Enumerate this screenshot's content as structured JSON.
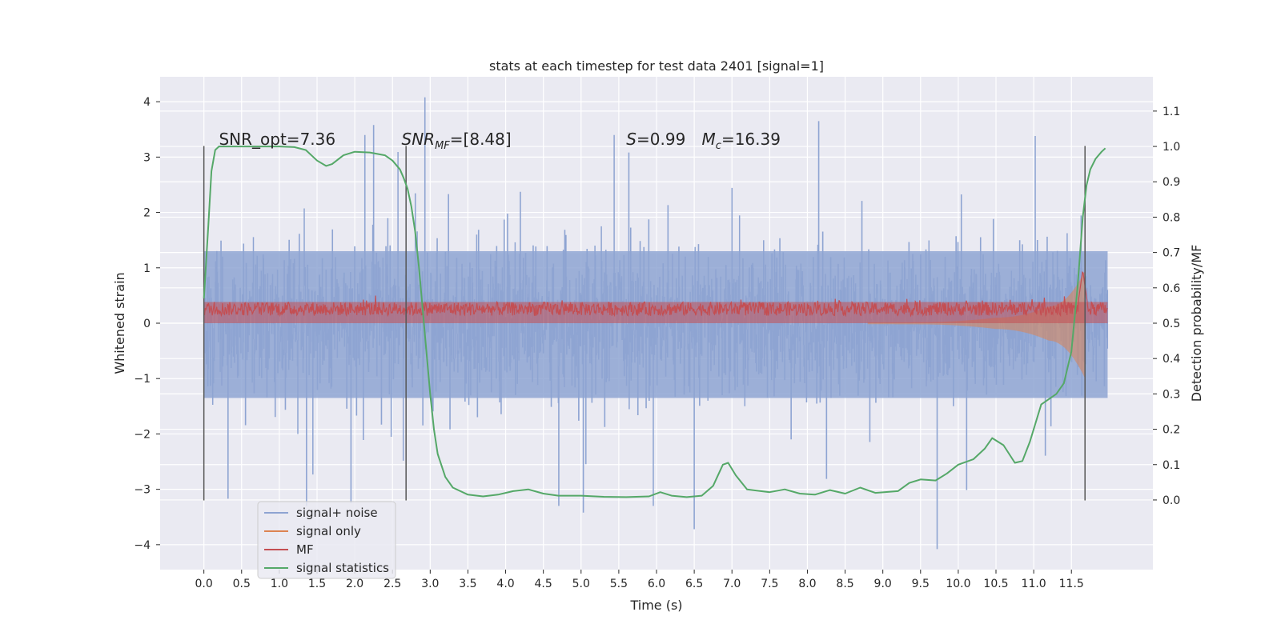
{
  "chart_data": {
    "type": "line",
    "title": "stats at each timestep for test data 2401 [signal=1]",
    "xlabel": "Time (s)",
    "ylabel_left": "Whitened strain",
    "ylabel_right": "Detection probability/MF",
    "xlim": [
      -0.58,
      12.58
    ],
    "ylim_left": [
      -4.45,
      4.45
    ],
    "ylim_right": [
      -0.197,
      1.197
    ],
    "grid": true,
    "legend_position": "lower-left",
    "x_ticks": [
      0.0,
      0.5,
      1.0,
      1.5,
      2.0,
      2.5,
      3.0,
      3.5,
      4.0,
      4.5,
      5.0,
      5.5,
      6.0,
      6.5,
      7.0,
      7.5,
      8.0,
      8.5,
      9.0,
      9.5,
      10.0,
      10.5,
      11.0,
      11.5
    ],
    "x_tick_labels": [
      "0.0",
      "0.5",
      "1.0",
      "1.5",
      "2.0",
      "2.5",
      "3.0",
      "3.5",
      "4.0",
      "4.5",
      "5.0",
      "5.5",
      "6.0",
      "6.5",
      "7.0",
      "7.5",
      "8.0",
      "8.5",
      "9.0",
      "9.5",
      "10.0",
      "10.5",
      "11.0",
      "11.5"
    ],
    "y_left_ticks": [
      -4,
      -3,
      -2,
      -1,
      0,
      1,
      2,
      3,
      4
    ],
    "y_left_tick_labels": [
      "−4",
      "−3",
      "−2",
      "−1",
      "0",
      "1",
      "2",
      "3",
      "4"
    ],
    "y_right_ticks": [
      0.0,
      0.1,
      0.2,
      0.3,
      0.4,
      0.5,
      0.6,
      0.7,
      0.8,
      0.9,
      1.0,
      1.1
    ],
    "y_right_tick_labels": [
      "0.0",
      "0.1",
      "0.2",
      "0.3",
      "0.4",
      "0.5",
      "0.6",
      "0.7",
      "0.8",
      "0.9",
      "1.0",
      "1.1"
    ],
    "series": [
      {
        "name": "signal+ noise",
        "color": "#8ea4d2",
        "axis": "left",
        "x_range": [
          0.0,
          11.98
        ],
        "envelope_typical": [
          -1.9,
          2.0
        ],
        "peaks": [
          {
            "x": 2.93,
            "y": 4.08
          },
          {
            "x": 2.25,
            "y": 3.58
          },
          {
            "x": 8.15,
            "y": 3.65
          },
          {
            "x": 9.72,
            "y": -4.08
          },
          {
            "x": 6.5,
            "y": -3.72
          },
          {
            "x": 5.03,
            "y": -3.42
          },
          {
            "x": 11.02,
            "y": 3.38
          },
          {
            "x": 0.32,
            "y": -3.17
          },
          {
            "x": 1.95,
            "y": -3.25
          }
        ]
      },
      {
        "name": "signal only",
        "color": "#dd8452",
        "axis": "left",
        "x_range": [
          0.0,
          11.68
        ],
        "description_points": [
          {
            "x": 0.0,
            "amp": 0.0
          },
          {
            "x": 9.5,
            "amp": 0.02
          },
          {
            "x": 10.5,
            "amp": 0.1
          },
          {
            "x": 11.2,
            "amp": 0.3
          },
          {
            "x": 11.68,
            "amp": 0.95
          }
        ]
      },
      {
        "name": "MF",
        "color": "#c44e52",
        "axis": "right",
        "x_range": [
          0.0,
          11.98
        ],
        "typical_range": [
          0.5,
          0.56
        ],
        "peak": {
          "x": 11.65,
          "y": 0.65
        }
      },
      {
        "name": "signal statistics",
        "color": "#55a868",
        "axis": "right",
        "x": [
          0.0,
          0.06,
          0.1,
          0.15,
          0.2,
          0.3,
          0.5,
          0.8,
          1.0,
          1.2,
          1.35,
          1.5,
          1.62,
          1.7,
          1.85,
          2.0,
          2.2,
          2.4,
          2.5,
          2.6,
          2.65,
          2.7,
          2.75,
          2.8,
          2.85,
          2.9,
          2.95,
          3.0,
          3.05,
          3.1,
          3.2,
          3.3,
          3.5,
          3.7,
          3.9,
          4.1,
          4.3,
          4.5,
          4.7,
          5.0,
          5.3,
          5.6,
          5.9,
          6.05,
          6.2,
          6.4,
          6.6,
          6.75,
          6.88,
          6.95,
          7.05,
          7.2,
          7.5,
          7.7,
          7.9,
          8.1,
          8.3,
          8.5,
          8.7,
          8.9,
          9.2,
          9.35,
          9.5,
          9.7,
          9.85,
          10.0,
          10.2,
          10.35,
          10.45,
          10.6,
          10.75,
          10.85,
          10.95,
          11.1,
          11.3,
          11.4,
          11.5,
          11.58,
          11.65,
          11.7,
          11.75,
          11.82,
          11.9,
          11.95
        ],
        "y": [
          0.57,
          0.78,
          0.93,
          0.99,
          1.0,
          1.0,
          1.0,
          1.0,
          1.0,
          0.998,
          0.99,
          0.96,
          0.945,
          0.95,
          0.975,
          0.985,
          0.983,
          0.975,
          0.96,
          0.935,
          0.91,
          0.88,
          0.83,
          0.76,
          0.66,
          0.54,
          0.42,
          0.3,
          0.2,
          0.13,
          0.065,
          0.035,
          0.015,
          0.01,
          0.015,
          0.025,
          0.03,
          0.018,
          0.012,
          0.012,
          0.009,
          0.008,
          0.01,
          0.022,
          0.012,
          0.008,
          0.012,
          0.04,
          0.1,
          0.105,
          0.07,
          0.03,
          0.022,
          0.03,
          0.018,
          0.015,
          0.028,
          0.018,
          0.035,
          0.02,
          0.025,
          0.048,
          0.058,
          0.055,
          0.075,
          0.1,
          0.115,
          0.145,
          0.175,
          0.155,
          0.105,
          0.11,
          0.165,
          0.27,
          0.3,
          0.33,
          0.42,
          0.6,
          0.8,
          0.89,
          0.935,
          0.965,
          0.985,
          0.995
        ]
      }
    ],
    "vertical_lines": [
      0.0,
      2.68,
      11.68
    ],
    "vertical_line_range": [
      -3.2,
      3.2
    ],
    "vertical_line_color": "#555555",
    "annotations": [
      {
        "text": "SNR_opt=7.36",
        "x": 0.2,
        "y": 3.22,
        "axis": "left"
      },
      {
        "text": "SNR",
        "subscript": "MF",
        "suffix": "=[8.48]",
        "italic": true,
        "x": 2.62,
        "y": 3.22,
        "axis": "left"
      },
      {
        "text": "S",
        "italic_part": true,
        "suffix": "=0.99",
        "x": 5.6,
        "y": 3.22,
        "axis": "left"
      },
      {
        "text": "M",
        "subscript": "c",
        "suffix": "=16.39",
        "italic_part": true,
        "x": 6.6,
        "y": 3.22,
        "axis": "left"
      }
    ],
    "colors": {
      "background": "#eaeaf2",
      "grid": "#ffffff",
      "text": "#262626"
    }
  }
}
